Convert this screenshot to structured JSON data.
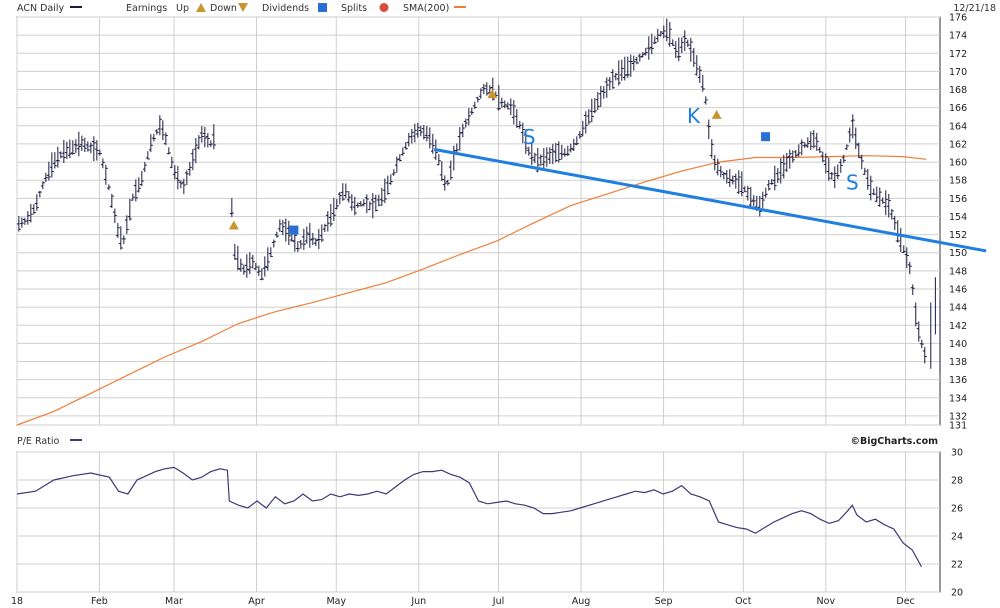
{
  "header": {
    "symbol_label": "ACN Daily",
    "earnings_label": "Earnings",
    "up_label": "Up",
    "down_label": "Down",
    "dividends_label": "Dividends",
    "splits_label": "Splits",
    "sma_label": "SMA(200)",
    "date_label": "12/21/18"
  },
  "credit": "©BigCharts.com",
  "colors": {
    "price_bars": "#1a1a40",
    "sma": "#ef7e3b",
    "trendline": "#1e7fe0",
    "grid": "#cfcfcf",
    "earnings": "#c9952e",
    "dividend": "#2a6fd6",
    "pe_line": "#3a3a78"
  },
  "chart_data": [
    {
      "type": "line",
      "title": "",
      "series_label": "ACN Daily (OHLC price bars)",
      "ylim": [
        131,
        176
      ],
      "y_ticks": [
        131,
        132,
        134,
        136,
        138,
        140,
        142,
        144,
        146,
        148,
        150,
        152,
        154,
        156,
        158,
        160,
        162,
        164,
        166,
        168,
        170,
        172,
        174,
        176
      ],
      "x_ticks": [
        "18",
        "Feb",
        "Mar",
        "Apr",
        "May",
        "Jun",
        "Jul",
        "Aug",
        "Sep",
        "Oct",
        "Nov",
        "Dec"
      ],
      "x_tick_frac": [
        0.0,
        0.0893,
        0.1701,
        0.2595,
        0.3459,
        0.4353,
        0.5217,
        0.6111,
        0.7005,
        0.7869,
        0.8763,
        0.9627
      ],
      "grid": true,
      "price_path": [
        [
          0.0,
          153.0
        ],
        [
          0.01,
          153.5
        ],
        [
          0.02,
          155.0
        ],
        [
          0.03,
          158.0
        ],
        [
          0.04,
          160.0
        ],
        [
          0.05,
          161.0
        ],
        [
          0.06,
          161.5
        ],
        [
          0.07,
          162.0
        ],
        [
          0.08,
          161.5
        ],
        [
          0.09,
          161.0
        ],
        [
          0.1,
          157.0
        ],
        [
          0.11,
          152.0
        ],
        [
          0.115,
          151.0
        ],
        [
          0.125,
          156.0
        ],
        [
          0.135,
          158.0
        ],
        [
          0.145,
          162.0
        ],
        [
          0.155,
          164.0
        ],
        [
          0.16,
          163.0
        ],
        [
          0.17,
          159.0
        ],
        [
          0.18,
          157.0
        ],
        [
          0.19,
          160.0
        ],
        [
          0.2,
          163.0
        ],
        [
          0.21,
          162.0
        ],
        [
          0.215,
          163.0
        ],
        [
          0.232,
          156.0
        ],
        [
          0.236,
          150.0
        ],
        [
          0.245,
          148.0
        ],
        [
          0.255,
          149.0
        ],
        [
          0.265,
          147.5
        ],
        [
          0.275,
          150.0
        ],
        [
          0.285,
          153.0
        ],
        [
          0.295,
          152.0
        ],
        [
          0.305,
          150.5
        ],
        [
          0.315,
          152.0
        ],
        [
          0.325,
          151.0
        ],
        [
          0.335,
          153.0
        ],
        [
          0.345,
          155.0
        ],
        [
          0.355,
          157.0
        ],
        [
          0.365,
          155.0
        ],
        [
          0.375,
          155.5
        ],
        [
          0.385,
          155.0
        ],
        [
          0.395,
          156.0
        ],
        [
          0.405,
          158.0
        ],
        [
          0.415,
          160.5
        ],
        [
          0.425,
          162.5
        ],
        [
          0.435,
          163.5
        ],
        [
          0.445,
          163.0
        ],
        [
          0.455,
          161.0
        ],
        [
          0.465,
          157.0
        ],
        [
          0.475,
          161.0
        ],
        [
          0.485,
          164.0
        ],
        [
          0.495,
          166.0
        ],
        [
          0.505,
          168.0
        ],
        [
          0.515,
          168.0
        ],
        [
          0.525,
          166.5
        ],
        [
          0.535,
          166.0
        ],
        [
          0.545,
          164.0
        ],
        [
          0.555,
          161.0
        ],
        [
          0.565,
          160.0
        ],
        [
          0.575,
          160.5
        ],
        [
          0.585,
          161.0
        ],
        [
          0.595,
          161.0
        ],
        [
          0.605,
          162.0
        ],
        [
          0.615,
          164.0
        ],
        [
          0.625,
          166.0
        ],
        [
          0.635,
          167.5
        ],
        [
          0.645,
          169.0
        ],
        [
          0.655,
          170.0
        ],
        [
          0.665,
          170.5
        ],
        [
          0.675,
          171.5
        ],
        [
          0.685,
          172.5
        ],
        [
          0.695,
          174.0
        ],
        [
          0.705,
          174.5
        ],
        [
          0.715,
          172.0
        ],
        [
          0.725,
          173.5
        ],
        [
          0.735,
          171.0
        ],
        [
          0.745,
          168.0
        ],
        [
          0.75,
          163.0
        ],
        [
          0.755,
          160.0
        ],
        [
          0.765,
          158.5
        ],
        [
          0.775,
          158.0
        ],
        [
          0.785,
          157.5
        ],
        [
          0.795,
          156.0
        ],
        [
          0.805,
          155.0
        ],
        [
          0.815,
          157.5
        ],
        [
          0.825,
          158.5
        ],
        [
          0.835,
          160.0
        ],
        [
          0.845,
          161.0
        ],
        [
          0.855,
          162.0
        ],
        [
          0.865,
          162.5
        ],
        [
          0.875,
          160.0
        ],
        [
          0.885,
          158.0
        ],
        [
          0.895,
          160.0
        ],
        [
          0.905,
          164.0
        ],
        [
          0.915,
          160.0
        ],
        [
          0.925,
          157.0
        ],
        [
          0.935,
          156.0
        ],
        [
          0.945,
          155.0
        ],
        [
          0.955,
          152.0
        ],
        [
          0.962,
          150.0
        ],
        [
          0.968,
          148.0
        ],
        [
          0.975,
          142.0
        ],
        [
          0.985,
          138.0
        ]
      ],
      "sma_200": [
        [
          0.0,
          131.0
        ],
        [
          0.04,
          132.5
        ],
        [
          0.08,
          134.5
        ],
        [
          0.12,
          136.5
        ],
        [
          0.16,
          138.5
        ],
        [
          0.2,
          140.2
        ],
        [
          0.24,
          142.2
        ],
        [
          0.28,
          143.5
        ],
        [
          0.32,
          144.5
        ],
        [
          0.36,
          145.6
        ],
        [
          0.4,
          146.7
        ],
        [
          0.44,
          148.2
        ],
        [
          0.48,
          149.8
        ],
        [
          0.52,
          151.3
        ],
        [
          0.56,
          153.3
        ],
        [
          0.6,
          155.2
        ],
        [
          0.64,
          156.5
        ],
        [
          0.68,
          157.8
        ],
        [
          0.72,
          159.0
        ],
        [
          0.76,
          160.0
        ],
        [
          0.8,
          160.5
        ],
        [
          0.84,
          160.5
        ],
        [
          0.88,
          160.6
        ],
        [
          0.92,
          160.7
        ],
        [
          0.96,
          160.6
        ],
        [
          0.985,
          160.3
        ]
      ],
      "trendline": [
        [
          0.452,
          161.4
        ],
        [
          1.05,
          150.2
        ]
      ],
      "earnings_up": [
        [
          0.235,
          153.0
        ],
        [
          0.515,
          167.5
        ],
        [
          0.758,
          165.2
        ]
      ],
      "dividends": [
        [
          0.3,
          152.5
        ],
        [
          0.811,
          162.8
        ]
      ],
      "annotations": [
        {
          "text": "S",
          "x": 0.555,
          "y": 162.0
        },
        {
          "text": "K",
          "x": 0.733,
          "y": 164.3
        },
        {
          "text": "S",
          "x": 0.905,
          "y": 157.0
        }
      ]
    },
    {
      "type": "line",
      "title": "P/E Ratio",
      "ylim": [
        20,
        30
      ],
      "y_ticks": [
        20,
        22,
        24,
        26,
        28,
        30
      ],
      "grid": true,
      "pe_series": [
        [
          0.0,
          27.0
        ],
        [
          0.02,
          27.2
        ],
        [
          0.04,
          28.0
        ],
        [
          0.06,
          28.3
        ],
        [
          0.08,
          28.5
        ],
        [
          0.1,
          28.2
        ],
        [
          0.11,
          27.2
        ],
        [
          0.12,
          27.0
        ],
        [
          0.13,
          28.0
        ],
        [
          0.14,
          28.3
        ],
        [
          0.15,
          28.6
        ],
        [
          0.16,
          28.8
        ],
        [
          0.17,
          28.9
        ],
        [
          0.18,
          28.5
        ],
        [
          0.19,
          28.0
        ],
        [
          0.2,
          28.2
        ],
        [
          0.21,
          28.6
        ],
        [
          0.22,
          28.8
        ],
        [
          0.228,
          28.7
        ],
        [
          0.23,
          26.5
        ],
        [
          0.24,
          26.2
        ],
        [
          0.25,
          26.0
        ],
        [
          0.26,
          26.5
        ],
        [
          0.27,
          26.0
        ],
        [
          0.28,
          26.8
        ],
        [
          0.29,
          26.3
        ],
        [
          0.3,
          26.5
        ],
        [
          0.31,
          27.0
        ],
        [
          0.32,
          26.5
        ],
        [
          0.33,
          26.6
        ],
        [
          0.34,
          27.0
        ],
        [
          0.35,
          26.8
        ],
        [
          0.36,
          27.0
        ],
        [
          0.37,
          26.9
        ],
        [
          0.38,
          27.0
        ],
        [
          0.39,
          27.2
        ],
        [
          0.4,
          27.0
        ],
        [
          0.41,
          27.5
        ],
        [
          0.42,
          28.0
        ],
        [
          0.43,
          28.4
        ],
        [
          0.44,
          28.6
        ],
        [
          0.45,
          28.6
        ],
        [
          0.46,
          28.7
        ],
        [
          0.47,
          28.4
        ],
        [
          0.48,
          28.2
        ],
        [
          0.49,
          27.8
        ],
        [
          0.5,
          26.5
        ],
        [
          0.51,
          26.3
        ],
        [
          0.52,
          26.4
        ],
        [
          0.53,
          26.5
        ],
        [
          0.54,
          26.3
        ],
        [
          0.55,
          26.2
        ],
        [
          0.56,
          26.0
        ],
        [
          0.57,
          25.6
        ],
        [
          0.58,
          25.6
        ],
        [
          0.59,
          25.7
        ],
        [
          0.6,
          25.8
        ],
        [
          0.61,
          26.0
        ],
        [
          0.62,
          26.2
        ],
        [
          0.63,
          26.4
        ],
        [
          0.64,
          26.6
        ],
        [
          0.65,
          26.8
        ],
        [
          0.66,
          27.0
        ],
        [
          0.67,
          27.2
        ],
        [
          0.68,
          27.1
        ],
        [
          0.69,
          27.3
        ],
        [
          0.7,
          27.0
        ],
        [
          0.71,
          27.2
        ],
        [
          0.72,
          27.6
        ],
        [
          0.73,
          27.0
        ],
        [
          0.74,
          26.8
        ],
        [
          0.75,
          26.5
        ],
        [
          0.76,
          25.0
        ],
        [
          0.77,
          24.8
        ],
        [
          0.78,
          24.6
        ],
        [
          0.79,
          24.5
        ],
        [
          0.8,
          24.2
        ],
        [
          0.81,
          24.6
        ],
        [
          0.82,
          25.0
        ],
        [
          0.83,
          25.3
        ],
        [
          0.84,
          25.6
        ],
        [
          0.85,
          25.8
        ],
        [
          0.86,
          25.6
        ],
        [
          0.87,
          25.2
        ],
        [
          0.88,
          24.9
        ],
        [
          0.89,
          25.1
        ],
        [
          0.9,
          25.8
        ],
        [
          0.905,
          26.2
        ],
        [
          0.91,
          25.5
        ],
        [
          0.92,
          25.0
        ],
        [
          0.93,
          25.2
        ],
        [
          0.94,
          24.8
        ],
        [
          0.95,
          24.5
        ],
        [
          0.96,
          23.5
        ],
        [
          0.97,
          23.0
        ],
        [
          0.98,
          21.8
        ]
      ]
    }
  ]
}
